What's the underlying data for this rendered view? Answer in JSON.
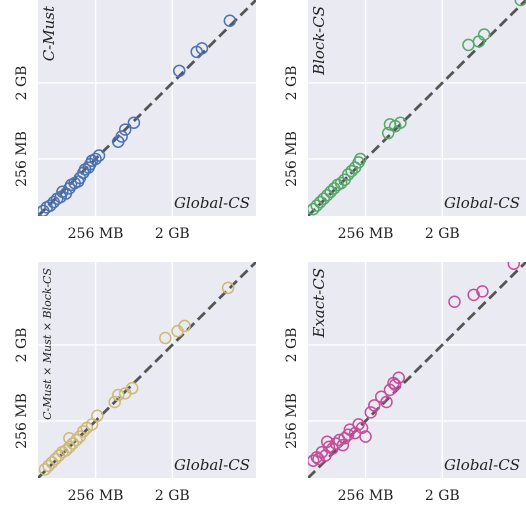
{
  "chart_data": [
    {
      "type": "scatter",
      "xlabel": "Global-CS",
      "ylabel": "C-Must",
      "color": "#4c72b0",
      "x_ticks": [
        "256 MB",
        "2 GB"
      ],
      "y_ticks": [
        "256 MB",
        "2 GB"
      ],
      "diagonal": "y = x",
      "points": [
        [
          0.03,
          0.03
        ],
        [
          0.05,
          0.05
        ],
        [
          0.07,
          0.06
        ],
        [
          0.09,
          0.08
        ],
        [
          0.11,
          0.1
        ],
        [
          0.13,
          0.11
        ],
        [
          0.14,
          0.14
        ],
        [
          0.16,
          0.13
        ],
        [
          0.18,
          0.16
        ],
        [
          0.19,
          0.18
        ],
        [
          0.21,
          0.19
        ],
        [
          0.23,
          0.2
        ],
        [
          0.24,
          0.22
        ],
        [
          0.26,
          0.25
        ],
        [
          0.27,
          0.27
        ],
        [
          0.29,
          0.28
        ],
        [
          0.3,
          0.3
        ],
        [
          0.31,
          0.32
        ],
        [
          0.33,
          0.33
        ],
        [
          0.35,
          0.35
        ],
        [
          0.46,
          0.43
        ],
        [
          0.48,
          0.46
        ],
        [
          0.5,
          0.5
        ],
        [
          0.55,
          0.54
        ],
        [
          0.81,
          0.84
        ],
        [
          0.91,
          0.95
        ],
        [
          0.94,
          0.97
        ],
        [
          1.1,
          1.13
        ]
      ]
    },
    {
      "type": "scatter",
      "xlabel": "Global-CS",
      "ylabel": "Block-CS",
      "color": "#55a868",
      "x_ticks": [
        "256 MB",
        "2 GB"
      ],
      "y_ticks": [
        "256 MB",
        "2 GB"
      ],
      "diagonal": "y = x",
      "points": [
        [
          0.03,
          0.04
        ],
        [
          0.05,
          0.06
        ],
        [
          0.07,
          0.08
        ],
        [
          0.09,
          0.1
        ],
        [
          0.11,
          0.12
        ],
        [
          0.13,
          0.14
        ],
        [
          0.15,
          0.16
        ],
        [
          0.17,
          0.18
        ],
        [
          0.19,
          0.19
        ],
        [
          0.21,
          0.21
        ],
        [
          0.23,
          0.24
        ],
        [
          0.25,
          0.26
        ],
        [
          0.27,
          0.28
        ],
        [
          0.29,
          0.31
        ],
        [
          0.3,
          0.33
        ],
        [
          0.46,
          0.48
        ],
        [
          0.47,
          0.53
        ],
        [
          0.5,
          0.52
        ],
        [
          0.53,
          0.54
        ],
        [
          0.92,
          0.99
        ],
        [
          0.98,
          1.01
        ],
        [
          1.01,
          1.05
        ],
        [
          1.22,
          1.25
        ]
      ]
    },
    {
      "type": "scatter",
      "xlabel": "Global-CS",
      "ylabel": "C-Must × Must × Block-CS",
      "color": "#ccb974",
      "x_ticks": [
        "256 MB",
        "2 GB"
      ],
      "y_ticks": [
        "256 MB",
        "2 GB"
      ],
      "diagonal": "y = x",
      "points": [
        [
          0.04,
          0.05
        ],
        [
          0.06,
          0.07
        ],
        [
          0.08,
          0.09
        ],
        [
          0.1,
          0.11
        ],
        [
          0.12,
          0.13
        ],
        [
          0.14,
          0.15
        ],
        [
          0.16,
          0.16
        ],
        [
          0.18,
          0.18
        ],
        [
          0.2,
          0.2
        ],
        [
          0.22,
          0.22
        ],
        [
          0.24,
          0.24
        ],
        [
          0.26,
          0.27
        ],
        [
          0.28,
          0.29
        ],
        [
          0.31,
          0.31
        ],
        [
          0.34,
          0.36
        ],
        [
          0.18,
          0.23
        ],
        [
          0.44,
          0.44
        ],
        [
          0.46,
          0.48
        ],
        [
          0.5,
          0.49
        ],
        [
          0.54,
          0.52
        ],
        [
          0.73,
          0.81
        ],
        [
          0.8,
          0.85
        ],
        [
          0.84,
          0.88
        ],
        [
          1.09,
          1.1
        ]
      ]
    },
    {
      "type": "scatter",
      "xlabel": "Global-CS",
      "ylabel": "Exact-CS",
      "color": "#c44e9a",
      "x_ticks": [
        "256 MB",
        "2 GB"
      ],
      "y_ticks": [
        "256 MB",
        "2 GB"
      ],
      "diagonal": "y = x",
      "points": [
        [
          0.03,
          0.1
        ],
        [
          0.05,
          0.12
        ],
        [
          0.06,
          0.11
        ],
        [
          0.08,
          0.15
        ],
        [
          0.1,
          0.13
        ],
        [
          0.12,
          0.18
        ],
        [
          0.11,
          0.21
        ],
        [
          0.14,
          0.17
        ],
        [
          0.16,
          0.2
        ],
        [
          0.18,
          0.22
        ],
        [
          0.2,
          0.19
        ],
        [
          0.21,
          0.23
        ],
        [
          0.23,
          0.25
        ],
        [
          0.24,
          0.28
        ],
        [
          0.27,
          0.26
        ],
        [
          0.29,
          0.31
        ],
        [
          0.31,
          0.29
        ],
        [
          0.33,
          0.24
        ],
        [
          0.36,
          0.38
        ],
        [
          0.38,
          0.42
        ],
        [
          0.42,
          0.47
        ],
        [
          0.45,
          0.44
        ],
        [
          0.47,
          0.51
        ],
        [
          0.49,
          0.55
        ],
        [
          0.52,
          0.58
        ],
        [
          0.5,
          0.54
        ],
        [
          0.84,
          1.02
        ],
        [
          0.95,
          1.06
        ],
        [
          1.0,
          1.08
        ],
        [
          1.18,
          1.24
        ]
      ]
    }
  ]
}
